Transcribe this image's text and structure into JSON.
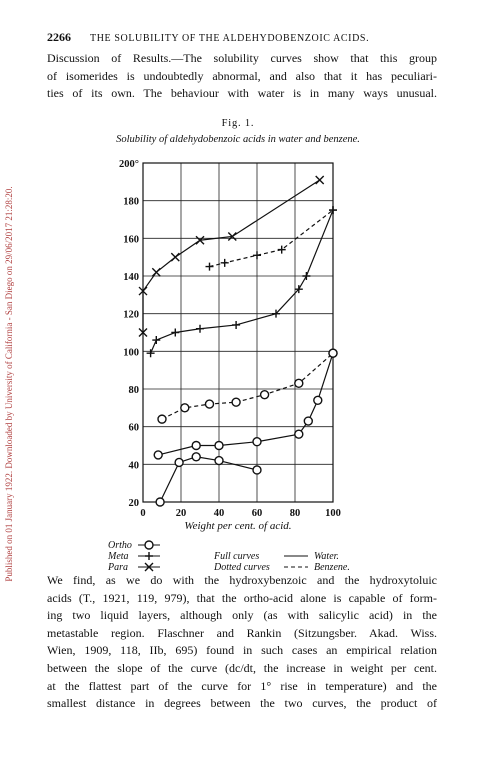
{
  "document": {
    "side_note": "Published on 01 January 1922. Downloaded by University of California - San Diego on 29/06/2017 21:28:20.",
    "header": {
      "page": "2266",
      "title": "THE SOLUBILITY OF THE ALDEHYDOBENZOIC ACIDS."
    },
    "paragraph1": [
      "Discussion of Results.—The solubility curves show that this group",
      "of isomerides is undoubtedly abnormal, and also that it has peculiari-",
      "ties of its own.  The behaviour with water is in many ways unusual."
    ],
    "paragraph2": [
      "We find, as we do with the hydroxybenzoic and the hydroxytoluic",
      "acids (T., 1921, 119, 979), that the ortho-acid alone is capable of form-",
      "ing two liquid layers, although only (as with salicylic acid) in the",
      "metastable region.  Flaschner and Rankin (Sitzungsber. Akad. Wiss.",
      "Wien, 1909, 118, IIb, 695) found in such cases an empirical relation",
      "between the slope of the curve (dc/dt, the increase in weight per cent.",
      "at the flattest part of the curve for 1° rise in temperature) and the",
      "smallest distance in degrees between the two curves, the product of"
    ]
  },
  "chart_data": {
    "type": "line",
    "title": "Fig. 1.",
    "subtitle": "Solubility of aldehydobenzoic acids in water and benzene.",
    "x_label": "Weight per cent. of acid.",
    "xlim": [
      0,
      100
    ],
    "ylim": [
      20,
      200
    ],
    "xticks": [
      0,
      20,
      40,
      60,
      80,
      100
    ],
    "yticks": [
      20,
      40,
      60,
      80,
      100,
      120,
      140,
      160,
      180,
      {
        "value": 200,
        "label": "200°"
      }
    ],
    "grid": true,
    "legend": {
      "markers": [
        {
          "label": "Ortho",
          "marker": "circle"
        },
        {
          "label": "Meta",
          "marker": "plus"
        },
        {
          "label": "Para",
          "marker": "cross"
        }
      ],
      "styles": [
        {
          "label": "Full curves",
          "dash": false,
          "meaning": "Water."
        },
        {
          "label": "Dotted curves",
          "dash": true,
          "meaning": "Benzene."
        }
      ]
    },
    "series": [
      {
        "marker": "circle",
        "dash": false,
        "color": "#111111",
        "x": [
          9,
          19,
          28,
          40,
          60
        ],
        "values": [
          20,
          41,
          44,
          42,
          37
        ]
      },
      {
        "marker": "circle",
        "dash": false,
        "color": "#111111",
        "x": [
          8,
          28,
          40,
          60,
          82,
          87,
          92,
          100
        ],
        "values": [
          45,
          50,
          50,
          52,
          56,
          63,
          74,
          99
        ]
      },
      {
        "marker": "circle",
        "dash": true,
        "color": "#111111",
        "x": [
          10,
          22,
          35,
          49,
          64,
          82,
          100
        ],
        "values": [
          64,
          70,
          72,
          73,
          77,
          83,
          99
        ]
      },
      {
        "marker": "plus",
        "dash": false,
        "color": "#111111",
        "x": [
          4,
          7,
          17,
          30,
          49,
          70,
          82,
          86,
          100
        ],
        "values": [
          99,
          106,
          110,
          112,
          114,
          120,
          133,
          140,
          175
        ]
      },
      {
        "marker": "plus",
        "dash": true,
        "color": "#111111",
        "x": [
          35,
          43,
          60,
          73,
          100
        ],
        "values": [
          145,
          147,
          151,
          154,
          175
        ]
      },
      {
        "marker": "cross",
        "dash": false,
        "color": "#111111",
        "x": [
          0,
          0,
          7,
          17,
          30,
          47,
          93
        ],
        "values": [
          110,
          132,
          142,
          150,
          159,
          161,
          191
        ]
      }
    ]
  }
}
